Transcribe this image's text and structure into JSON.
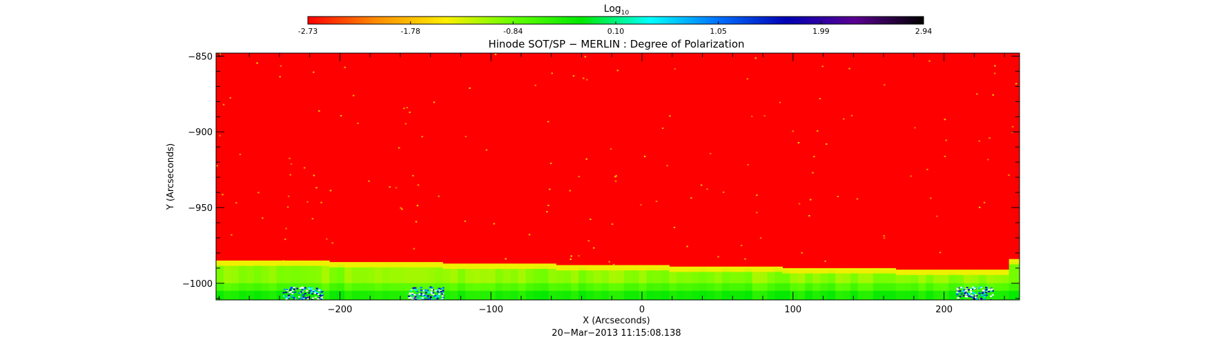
{
  "colorbar": {
    "title": "Log",
    "title_sub": "10",
    "ticks": [
      "-2.73",
      "-1.78",
      "-0.84",
      "0.10",
      "1.05",
      "1.99",
      "2.94"
    ],
    "range": [
      -2.73,
      2.94
    ],
    "colors": [
      "#ff0000",
      "#ff8c00",
      "#ffee00",
      "#66ff00",
      "#00e800",
      "#00ffff",
      "#0070ff",
      "#0000b4",
      "#5a0090",
      "#000000"
    ]
  },
  "chart_data": {
    "type": "heatmap",
    "title": "Hinode SOT/SP − MERLIN : Degree of Polarization",
    "xlabel": "X (Arcseconds)",
    "ylabel": "Y (Arcseconds)",
    "subtitle": "20−Mar−2013 11:15:08.138",
    "xlim": [
      -282,
      250
    ],
    "ylim": [
      -1011,
      -848
    ],
    "x_ticks": [
      -200,
      -100,
      0,
      100,
      200
    ],
    "x_tick_labels": [
      "−200",
      "−100",
      "0",
      "100",
      "200"
    ],
    "y_ticks": [
      -850,
      -900,
      -950,
      -1000
    ],
    "y_tick_labels": [
      "−850",
      "−900",
      "−950",
      "−1000"
    ],
    "value_scale": "log10",
    "background_value": -2.73,
    "limb_segments": [
      {
        "x": [
          -282,
          -207
        ],
        "limb_y": -986
      },
      {
        "x": [
          -207,
          -132
        ],
        "limb_y": -987
      },
      {
        "x": [
          -132,
          -57
        ],
        "limb_y": -988
      },
      {
        "x": [
          -57,
          18
        ],
        "limb_y": -989
      },
      {
        "x": [
          18,
          93
        ],
        "limb_y": -990
      },
      {
        "x": [
          93,
          168
        ],
        "limb_y": -991
      },
      {
        "x": [
          168,
          243
        ],
        "limb_y": -992
      },
      {
        "x": [
          243,
          250
        ],
        "limb_y": -985
      }
    ],
    "off_limb_value_range": [
      -1.4,
      1.3
    ]
  }
}
